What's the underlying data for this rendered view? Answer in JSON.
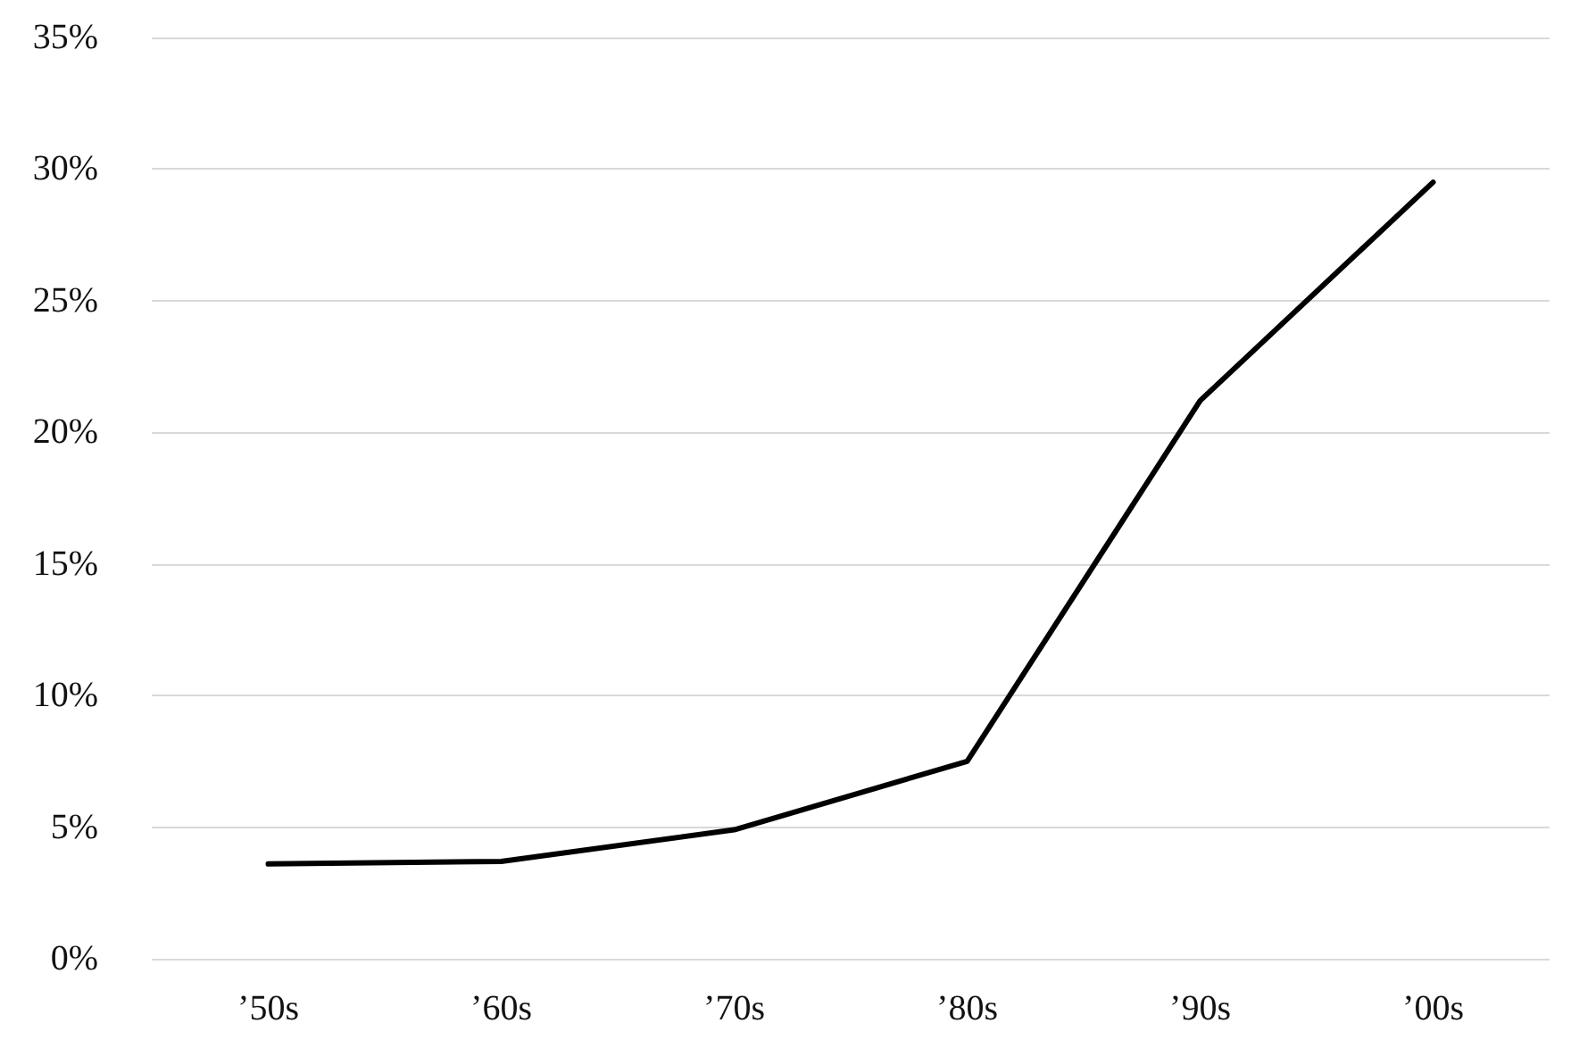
{
  "chart_data": {
    "type": "line",
    "categories": [
      "’50s",
      "’60s",
      "’70s",
      "’80s",
      "’90s",
      "’00s"
    ],
    "series": [
      {
        "color": "#000000",
        "values": [
          3.6,
          3.7,
          4.9,
          7.5,
          21.2,
          29.5
        ]
      }
    ],
    "ylim": [
      0,
      35
    ],
    "yticks": [
      {
        "value": 0,
        "label": "0%"
      },
      {
        "value": 5,
        "label": "5%"
      },
      {
        "value": 10,
        "label": "10%"
      },
      {
        "value": 15,
        "label": "15%"
      },
      {
        "value": 20,
        "label": "20%"
      },
      {
        "value": 25,
        "label": "25%"
      },
      {
        "value": 30,
        "label": "30%"
      },
      {
        "value": 35,
        "label": "35%"
      }
    ],
    "grid": "y",
    "marker": "none",
    "line_style": "solid"
  }
}
